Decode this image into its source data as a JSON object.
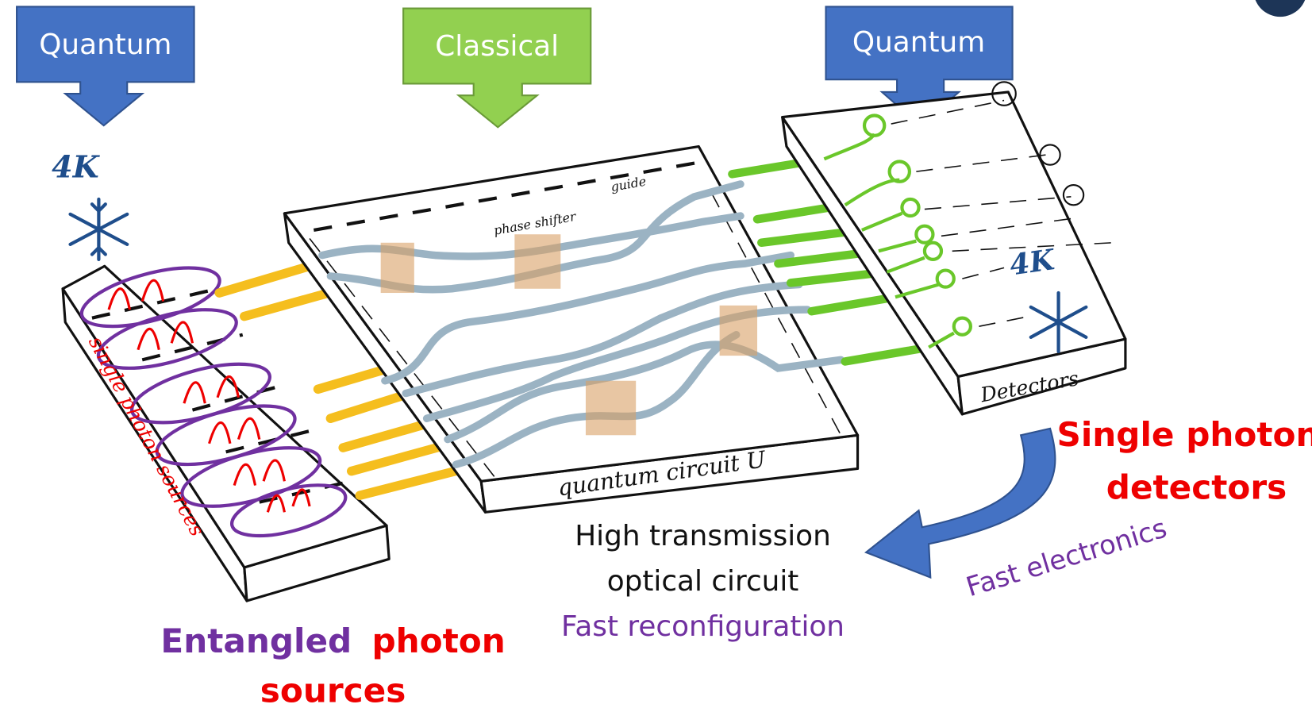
{
  "arrows": [
    {
      "label": "Quantum"
    },
    {
      "label": "Classical"
    },
    {
      "label": "Quantum"
    }
  ],
  "sketch": {
    "source_temperature": "4K",
    "source_chip": "single photon sources",
    "phase_shifter": "phase shifter",
    "waveguide": "guide",
    "circuit": "quantum circuit U",
    "detector_chip": "Detectors",
    "detector_temperature": "4K"
  },
  "captions": {
    "sources": {
      "entangled": "Entangled",
      "photon": "photon",
      "sources": "sources"
    },
    "circuit": {
      "line1": "High transmission",
      "line2": "optical circuit",
      "note": "Fast reconfiguration"
    },
    "detectors": {
      "line1": "Single photon",
      "line2": "detectors",
      "note": "Fast electronics"
    }
  }
}
